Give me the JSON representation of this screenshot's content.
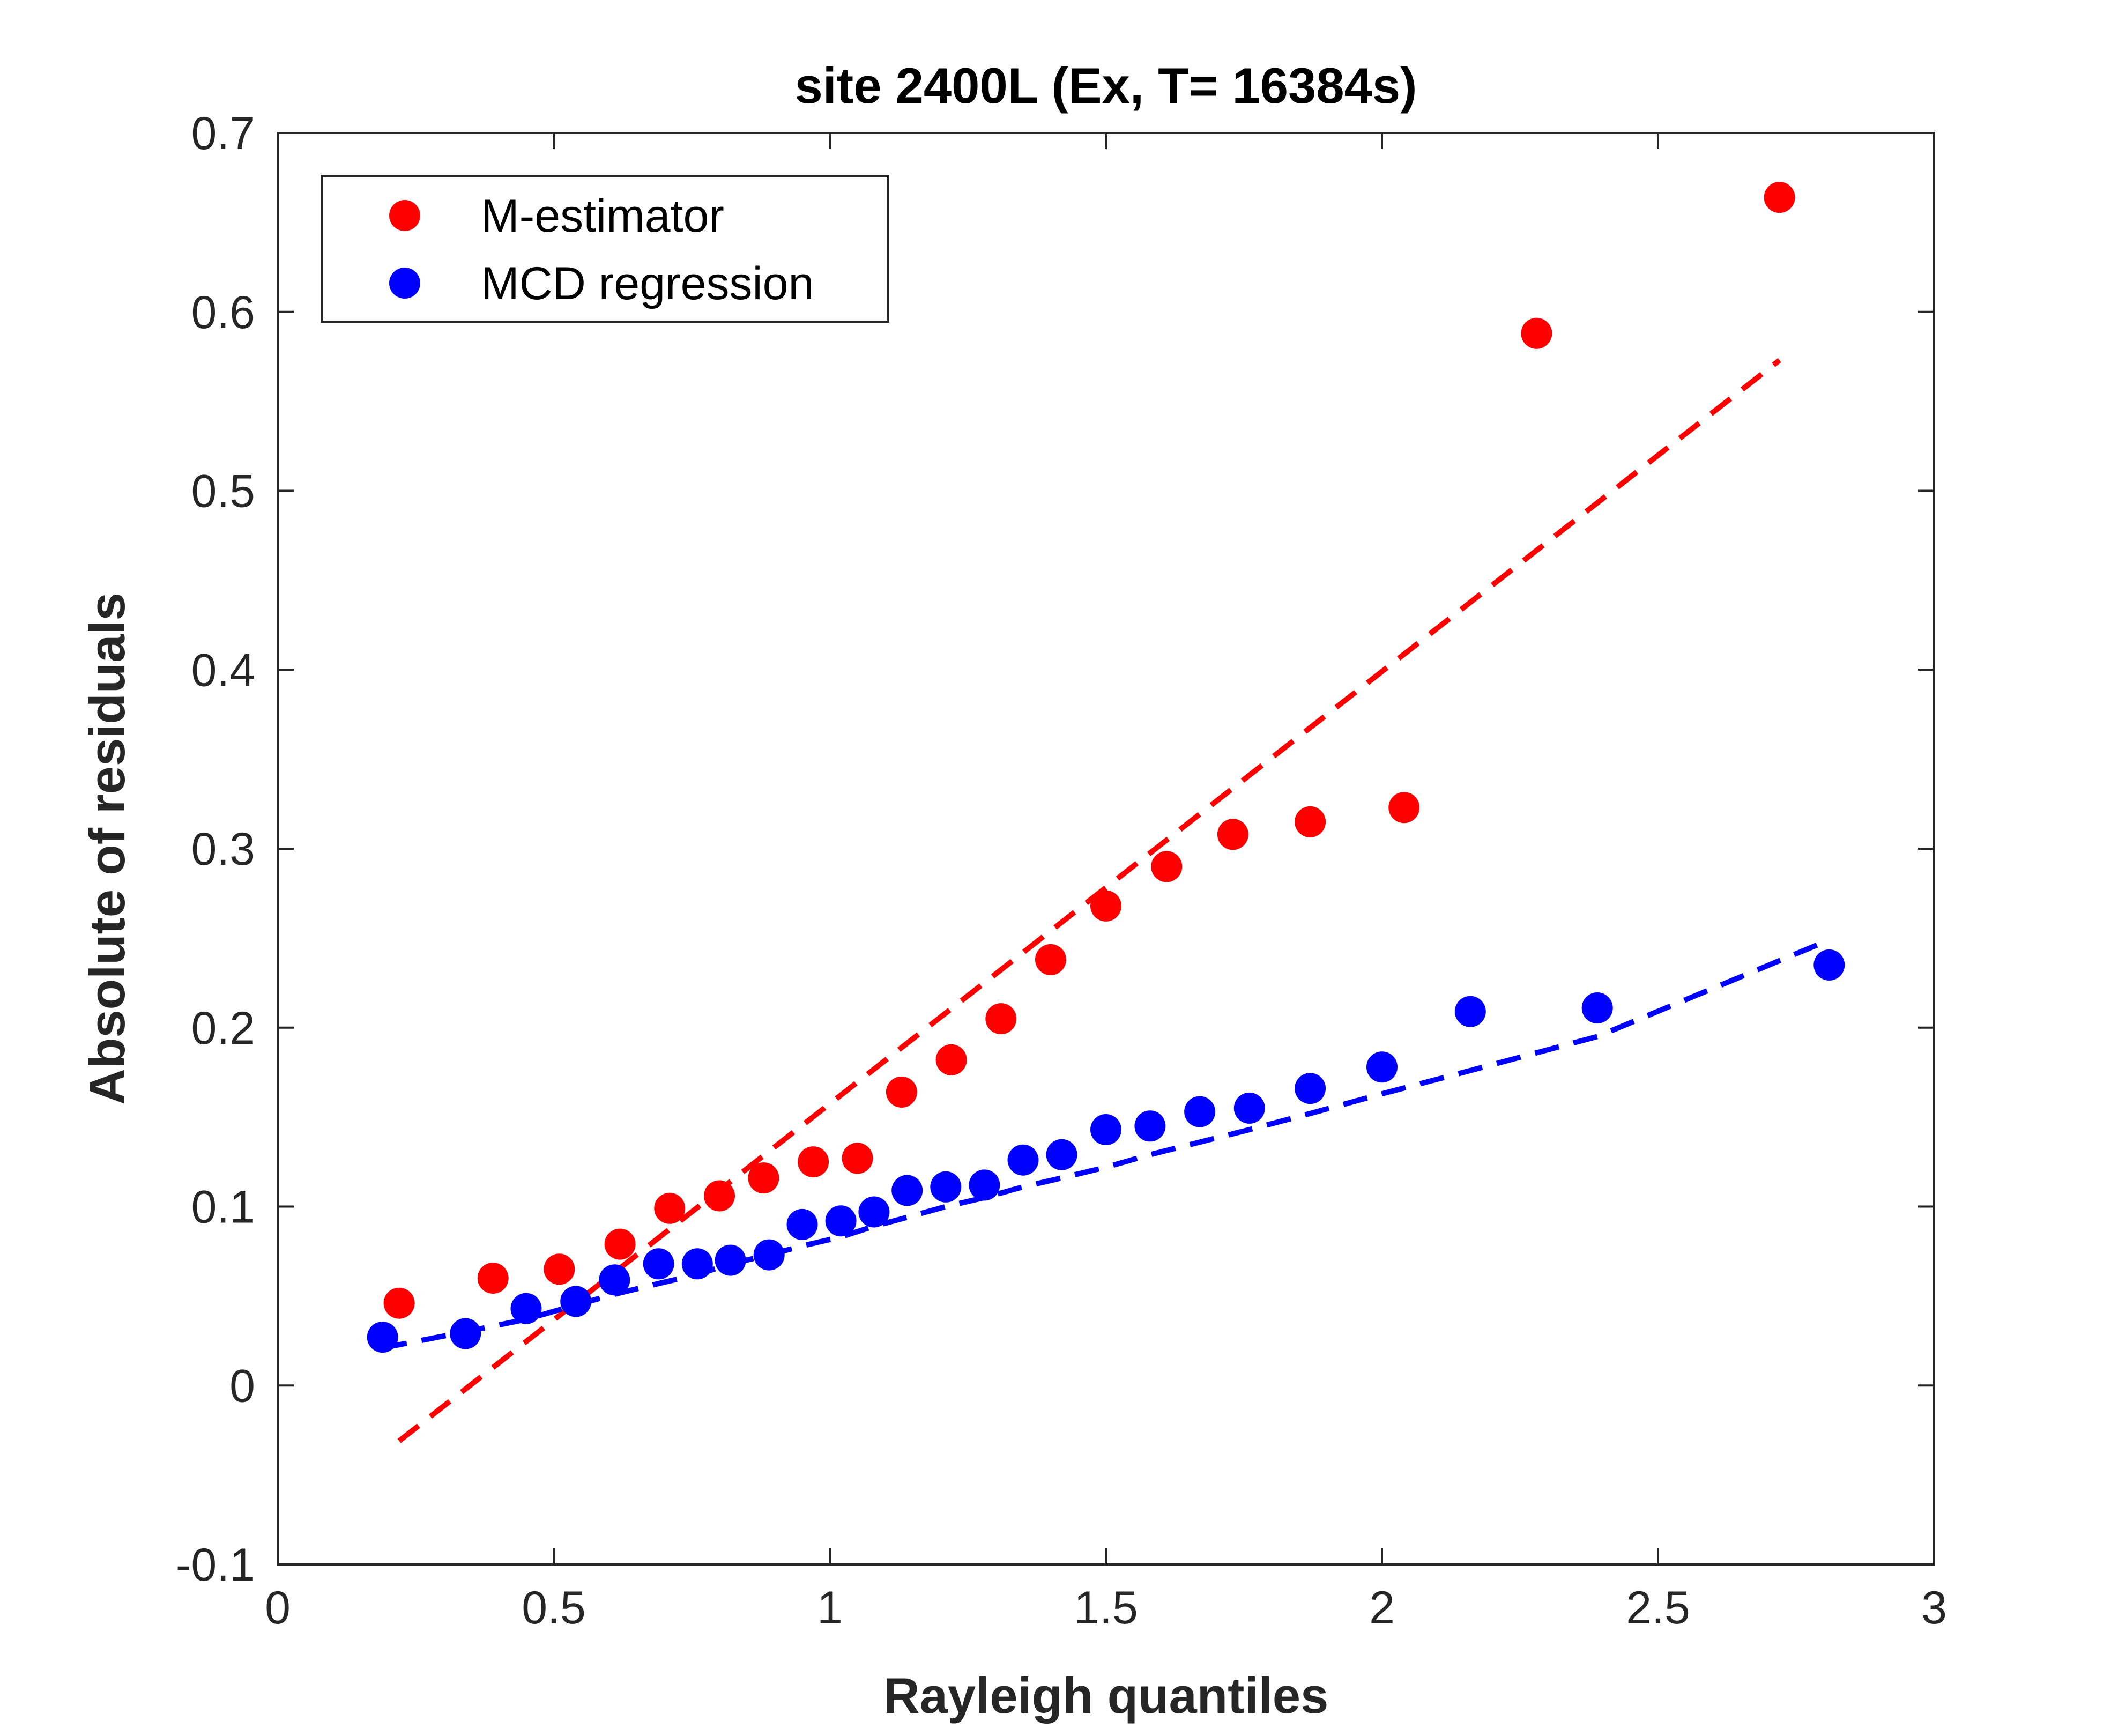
{
  "chart_data": {
    "type": "scatter",
    "title": "site 2400L (Ex, T= 16384s)",
    "xlabel": "Rayleigh quantiles",
    "ylabel": "Absolute of residuals",
    "xlim": [
      0,
      3
    ],
    "ylim": [
      -0.1,
      0.7
    ],
    "xticks": [
      0,
      0.5,
      1,
      1.5,
      2,
      2.5,
      3
    ],
    "xtick_labels": [
      "0",
      "0.5",
      "1",
      "1.5",
      "2",
      "2.5",
      "3"
    ],
    "yticks": [
      -0.1,
      0,
      0.1,
      0.2,
      0.3,
      0.4,
      0.5,
      0.6,
      0.7
    ],
    "ytick_labels": [
      "-0.1",
      "0",
      "0.1",
      "0.2",
      "0.3",
      "0.4",
      "0.5",
      "0.6",
      "0.7"
    ],
    "grid": false,
    "box": true,
    "legend_position": "top-left",
    "series": [
      {
        "name": "M-estimator",
        "color": "#ff0000",
        "marker": "filled-circle",
        "points": [
          [
            0.22,
            0.046
          ],
          [
            0.39,
            0.06
          ],
          [
            0.51,
            0.065
          ],
          [
            0.62,
            0.079
          ],
          [
            0.71,
            0.099
          ],
          [
            0.8,
            0.106
          ],
          [
            0.88,
            0.116
          ],
          [
            0.97,
            0.125
          ],
          [
            1.05,
            0.127
          ],
          [
            1.13,
            0.164
          ],
          [
            1.22,
            0.182
          ],
          [
            1.31,
            0.205
          ],
          [
            1.4,
            0.238
          ],
          [
            1.5,
            0.268
          ],
          [
            1.61,
            0.29
          ],
          [
            1.73,
            0.308
          ],
          [
            1.87,
            0.315
          ],
          [
            2.04,
            0.323
          ],
          [
            2.28,
            0.588
          ],
          [
            2.72,
            0.664
          ]
        ],
        "fit_line": {
          "style": "dashed",
          "from": [
            0.22,
            -0.031
          ],
          "to": [
            2.72,
            0.573
          ]
        }
      },
      {
        "name": "MCD regression",
        "color": "#0000ff",
        "marker": "filled-circle",
        "points": [
          [
            0.19,
            0.027
          ],
          [
            0.34,
            0.029
          ],
          [
            0.45,
            0.043
          ],
          [
            0.54,
            0.047
          ],
          [
            0.61,
            0.059
          ],
          [
            0.69,
            0.068
          ],
          [
            0.76,
            0.068
          ],
          [
            0.82,
            0.07
          ],
          [
            0.89,
            0.073
          ],
          [
            0.95,
            0.09
          ],
          [
            1.02,
            0.092
          ],
          [
            1.08,
            0.097
          ],
          [
            1.14,
            0.109
          ],
          [
            1.21,
            0.111
          ],
          [
            1.28,
            0.112
          ],
          [
            1.35,
            0.126
          ],
          [
            1.42,
            0.129
          ],
          [
            1.5,
            0.143
          ],
          [
            1.58,
            0.145
          ],
          [
            1.67,
            0.153
          ],
          [
            1.76,
            0.155
          ],
          [
            1.87,
            0.166
          ],
          [
            2.0,
            0.178
          ],
          [
            2.16,
            0.209
          ],
          [
            2.39,
            0.211
          ],
          [
            2.81,
            0.235
          ]
        ],
        "fit_line": {
          "style": "dashed",
          "points": [
            [
              0.19,
              0.021
            ],
            [
              0.34,
              0.03
            ],
            [
              0.45,
              0.037
            ],
            [
              0.54,
              0.045
            ],
            [
              0.61,
              0.051
            ],
            [
              0.69,
              0.057
            ],
            [
              0.76,
              0.062
            ],
            [
              0.82,
              0.068
            ],
            [
              0.89,
              0.073
            ],
            [
              0.95,
              0.078
            ],
            [
              1.02,
              0.083
            ],
            [
              1.08,
              0.089
            ],
            [
              1.14,
              0.094
            ],
            [
              1.21,
              0.1
            ],
            [
              1.28,
              0.105
            ],
            [
              1.35,
              0.111
            ],
            [
              1.42,
              0.116
            ],
            [
              1.5,
              0.122
            ],
            [
              1.58,
              0.129
            ],
            [
              1.67,
              0.136
            ],
            [
              1.76,
              0.143
            ],
            [
              1.87,
              0.152
            ],
            [
              2.0,
              0.163
            ],
            [
              2.16,
              0.176
            ],
            [
              2.39,
              0.195
            ],
            [
              2.81,
              0.249
            ]
          ]
        }
      }
    ]
  }
}
